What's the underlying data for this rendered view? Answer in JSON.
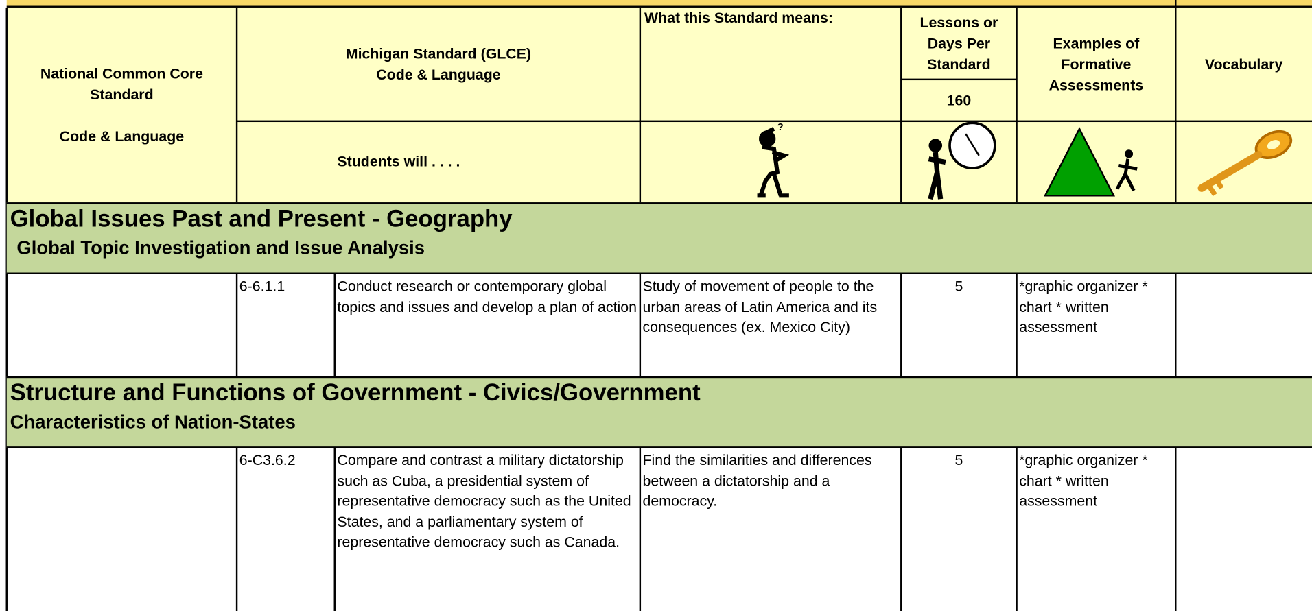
{
  "header": {
    "common_core": [
      "National Common Core Standard",
      "Code & Language"
    ],
    "michigan": [
      "Michigan Standard (GLCE)",
      "Code & Language"
    ],
    "students_will": "Students will . . . .",
    "means": "What this Standard means:",
    "lessons": "Lessons or Days Per Standard",
    "lessons_total": 160,
    "assessments": "Examples of Formative Assessments",
    "vocabulary": "Vocabulary"
  },
  "sections": [
    {
      "title": "Global Issues Past and Present - Geography",
      "subtitle": "Global Topic Investigation and Issue Analysis",
      "rows": [
        {
          "code": "6-6.1.1",
          "standard": "Conduct research or contemporary global topics and issues and develop a plan of action",
          "means": "Study of movement of people to the urban areas of Latin America and its consequences (ex. Mexico City)",
          "lessons": 5,
          "assessments": "*graphic organizer * chart * written assessment"
        }
      ]
    },
    {
      "title": "Structure and Functions of Government - Civics/Government",
      "subtitle": "Characteristics of Nation-States",
      "rows": [
        {
          "code": "6-C3.6.2",
          "standard": "Compare and contrast a military dictatorship such as Cuba, a presidential system of representative democracy such as the United States, and a parliamentary system of representative democracy such as Canada.",
          "means": "Find the similarities and differences between a dictatorship and a democracy.",
          "lessons": 5,
          "assessments": "*graphic organizer * chart * written assessment"
        }
      ]
    }
  ]
}
